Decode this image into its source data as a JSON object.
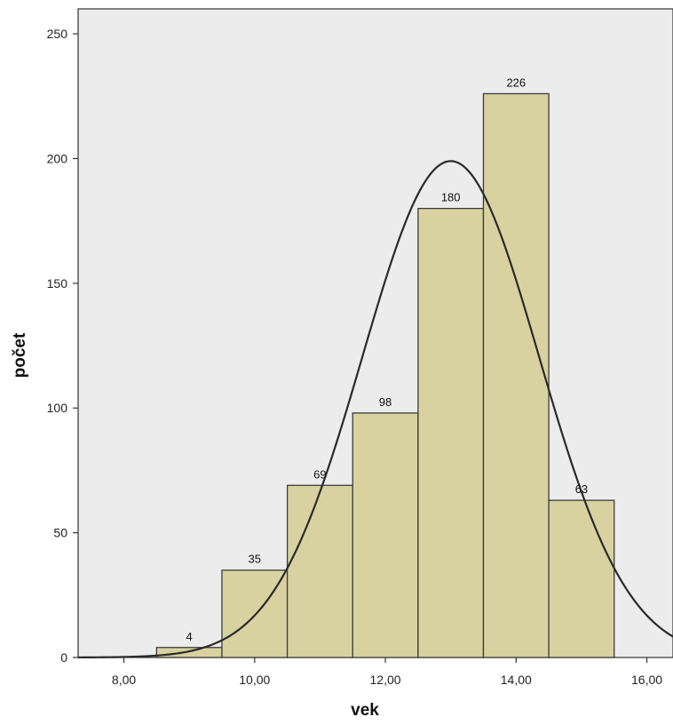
{
  "chart_data": {
    "type": "histogram",
    "xlabel": "vek",
    "ylabel": "počet",
    "xlim": [
      7.3,
      16.4
    ],
    "ylim": [
      0,
      260
    ],
    "x_ticks": [
      {
        "value": 8,
        "label": "8,00"
      },
      {
        "value": 10,
        "label": "10,00"
      },
      {
        "value": 12,
        "label": "12,00"
      },
      {
        "value": 14,
        "label": "14,00"
      },
      {
        "value": 16,
        "label": "16,00"
      }
    ],
    "y_ticks": [
      {
        "value": 0,
        "label": "0"
      },
      {
        "value": 50,
        "label": "50"
      },
      {
        "value": 100,
        "label": "100"
      },
      {
        "value": 150,
        "label": "150"
      },
      {
        "value": 200,
        "label": "200"
      },
      {
        "value": 250,
        "label": "250"
      }
    ],
    "bins": [
      {
        "x0": 8.5,
        "x1": 9.5,
        "value": 4,
        "label": "4"
      },
      {
        "x0": 9.5,
        "x1": 10.5,
        "value": 35,
        "label": "35"
      },
      {
        "x0": 10.5,
        "x1": 11.5,
        "value": 69,
        "label": "69"
      },
      {
        "x0": 11.5,
        "x1": 12.5,
        "value": 98,
        "label": "98"
      },
      {
        "x0": 12.5,
        "x1": 13.5,
        "value": 180,
        "label": "180"
      },
      {
        "x0": 13.5,
        "x1": 14.5,
        "value": 226,
        "label": "226"
      },
      {
        "x0": 14.5,
        "x1": 15.5,
        "value": 63,
        "label": "63"
      }
    ],
    "normal_curve": {
      "mean": 13.0,
      "sd": 1.35,
      "peak": 199
    },
    "colors": {
      "plot_background": "#ececec",
      "bar_fill": "#d8d2a0",
      "bar_stroke": "#3c3c3c",
      "curve": "#2a2a2a",
      "axis": "#333333"
    }
  }
}
